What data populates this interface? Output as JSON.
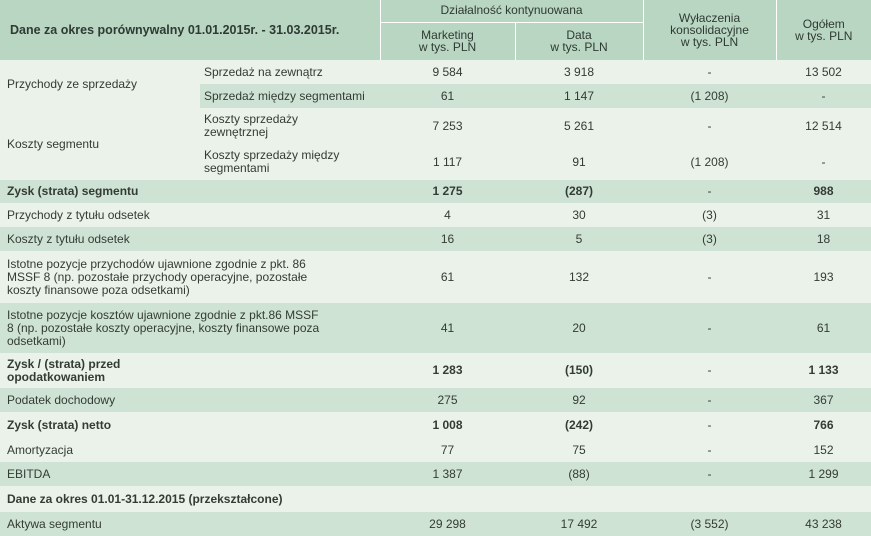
{
  "header": {
    "period_title": "Dane za okres porównywalny 01.01.2015r. - 31.03.2015r.",
    "group_title": "Działalność kontynuowana",
    "col_marketing": [
      "Marketing",
      "w tys. PLN"
    ],
    "col_data": [
      "Data",
      "w tys. PLN"
    ],
    "col_elim": [
      "Wyłaczenia",
      "konsolidacyjne",
      "w tys. PLN"
    ],
    "col_total": [
      "Ogółem",
      "w tys. PLN"
    ]
  },
  "rows": {
    "przychody": {
      "label": "Przychody ze sprzedaży",
      "sub1": {
        "label": "Sprzedaż na zewnątrz",
        "marketing": "9 584",
        "data": "3 918",
        "elim": "-",
        "total": "13 502"
      },
      "sub2": {
        "label": "Sprzedaż między segmentami",
        "marketing": "61",
        "data": "1 147",
        "elim": "(1 208)",
        "total": "-"
      }
    },
    "koszty": {
      "label": "Koszty segmentu",
      "sub1": {
        "label": [
          "Koszty sprzedaży",
          "zewnętrznej"
        ],
        "marketing": "7 253",
        "data": "5 261",
        "elim": "-",
        "total": "12 514"
      },
      "sub2": {
        "label": [
          "Koszty sprzedaży między",
          "segmentami"
        ],
        "marketing": "1 117",
        "data": "91",
        "elim": "(1 208)",
        "total": "-"
      }
    },
    "zysk_segmentu": {
      "label": "Zysk (strata) segmentu",
      "marketing": "1 275",
      "data": "(287)",
      "elim": "-",
      "total": "988"
    },
    "przychody_odsetek": {
      "label": "Przychody z tytułu odsetek",
      "marketing": "4",
      "data": "30",
      "elim": "(3)",
      "total": "31"
    },
    "koszty_odsetek": {
      "label": "Koszty z tytułu odsetek",
      "marketing": "16",
      "data": "5",
      "elim": "(3)",
      "total": "18"
    },
    "istotne_przychody": {
      "label": [
        "Istotne pozycje przychodów ujawnione zgodnie z pkt. 86",
        "MSSF 8 (np. pozostałe przychody operacyjne, pozostałe",
        "koszty finansowe poza odsetkami)"
      ],
      "marketing": "61",
      "data": "132",
      "elim": "-",
      "total": "193"
    },
    "istotne_koszty": {
      "label": [
        "Istotne pozycje kosztów ujawnione zgodnie z pkt.86 MSSF",
        "8 (np. pozostałe koszty operacyjne, koszty finansowe poza",
        "odsetkami)"
      ],
      "marketing": "41",
      "data": "20",
      "elim": "-",
      "total": "61"
    },
    "zysk_przed": {
      "label": [
        "Zysk / (strata) przed",
        "opodatkowaniem"
      ],
      "marketing": "1 283",
      "data": "(150)",
      "elim": "-",
      "total": "1 133"
    },
    "podatek": {
      "label": "Podatek dochodowy",
      "marketing": "275",
      "data": "92",
      "elim": "-",
      "total": "367"
    },
    "zysk_netto": {
      "label": "Zysk (strata) netto",
      "marketing": "1 008",
      "data": "(242)",
      "elim": "-",
      "total": "766"
    },
    "amortyzacja": {
      "label": "Amortyzacja",
      "marketing": "77",
      "data": "75",
      "elim": "-",
      "total": "152"
    },
    "ebitda": {
      "label": "EBITDA",
      "marketing": "1 387",
      "data": "(88)",
      "elim": "-",
      "total": "1 299"
    },
    "section2": {
      "label": "Dane za okres 01.01-31.12.2015 (przekształcone)"
    },
    "aktywa": {
      "label": "Aktywa segmentu",
      "marketing": "29 298",
      "data": "17 492",
      "elim": "(3 552)",
      "total": "43 238"
    }
  }
}
